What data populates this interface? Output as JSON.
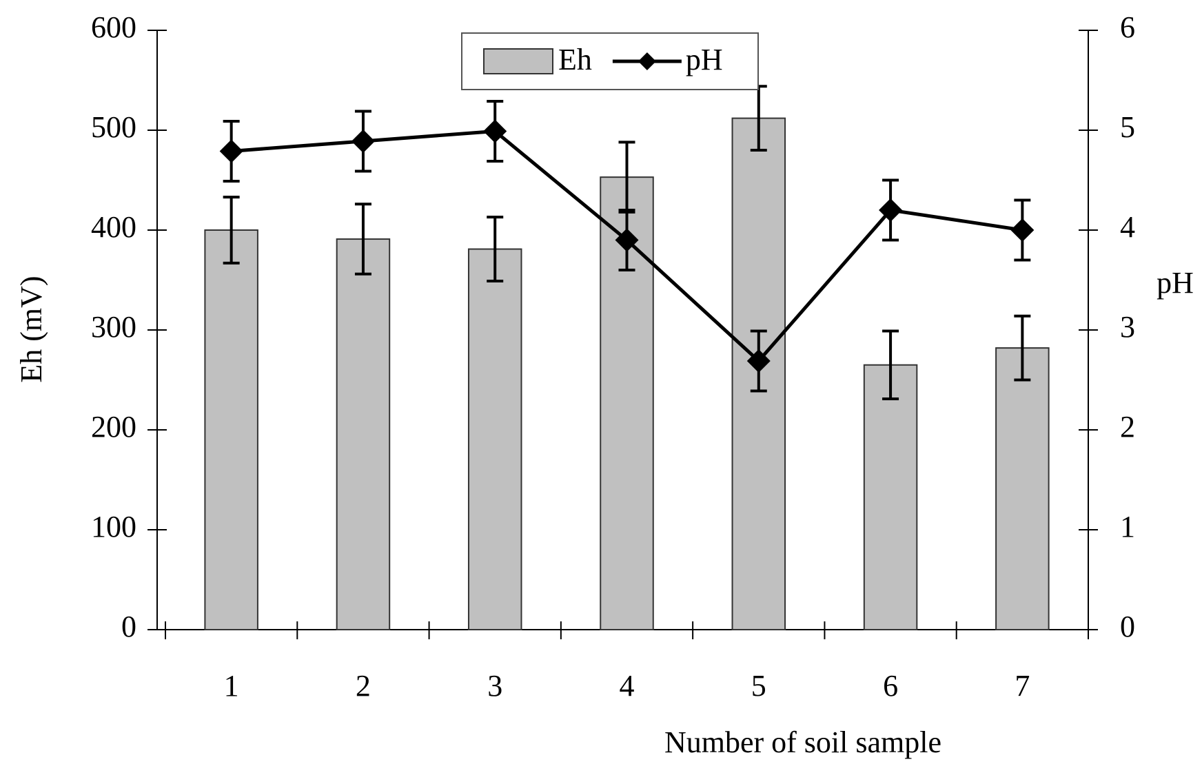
{
  "chart_data": {
    "type": "bar_line",
    "x_label": "Number of soil sample",
    "y_label": "Eh (mV)",
    "y2_label": "pH",
    "categories": [
      "1",
      "2",
      "3",
      "4",
      "5",
      "6",
      "7"
    ],
    "ylim": [
      0,
      600
    ],
    "yticks": [
      0,
      100,
      200,
      300,
      400,
      500,
      600
    ],
    "y2lim": [
      0,
      6
    ],
    "y2ticks": [
      0,
      1,
      2,
      3,
      4,
      5,
      6
    ],
    "legend": "top",
    "series": [
      {
        "name": "Eh",
        "type": "bar",
        "color": "#c0c0c0",
        "values": [
          400,
          391,
          381,
          453,
          512,
          265,
          282
        ],
        "errors": [
          33,
          35,
          32,
          35,
          32,
          34,
          32
        ]
      },
      {
        "name": "pH",
        "type": "line",
        "axis": "y2",
        "color": "#000000",
        "values": [
          4.79,
          4.89,
          4.99,
          3.9,
          2.69,
          4.2,
          4.0
        ],
        "errors": [
          0.3,
          0.3,
          0.3,
          0.3,
          0.3,
          0.3,
          0.3
        ]
      }
    ]
  }
}
